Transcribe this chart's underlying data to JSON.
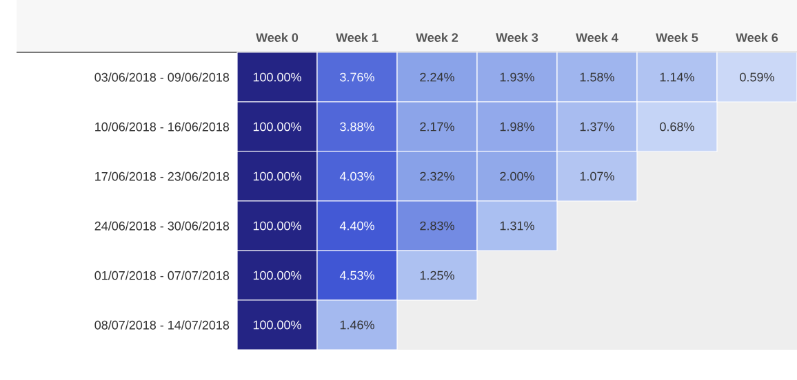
{
  "chart_data": {
    "type": "heatmap",
    "categories": [
      "Week 0",
      "Week 1",
      "Week 2",
      "Week 3",
      "Week 4",
      "Week 5",
      "Week 6"
    ],
    "y_categories": [
      "03/06/2018 - 09/06/2018",
      "10/06/2018 - 16/06/2018",
      "17/06/2018 - 23/06/2018",
      "24/06/2018 - 30/06/2018",
      "01/07/2018 - 07/07/2018",
      "08/07/2018 - 14/07/2018"
    ],
    "cells": [
      [
        100,
        3.76,
        2.24,
        1.93,
        1.58,
        1.14,
        0.59
      ],
      [
        100,
        3.88,
        2.17,
        1.98,
        1.37,
        0.68,
        null
      ],
      [
        100,
        4.03,
        2.32,
        2.0,
        1.07,
        null,
        null
      ],
      [
        100,
        4.4,
        2.83,
        1.31,
        null,
        null,
        null
      ],
      [
        100,
        4.53,
        1.25,
        null,
        null,
        null,
        null
      ],
      [
        100,
        1.46,
        null,
        null,
        null,
        null,
        null
      ]
    ],
    "cell_labels": [
      [
        "100.00%",
        "3.76%",
        "2.24%",
        "1.93%",
        "1.58%",
        "1.14%",
        "0.59%"
      ],
      [
        "100.00%",
        "3.88%",
        "2.17%",
        "1.98%",
        "1.37%",
        "0.68%",
        null
      ],
      [
        "100.00%",
        "4.03%",
        "2.32%",
        "2.00%",
        "1.07%",
        null,
        null
      ],
      [
        "100.00%",
        "4.40%",
        "2.83%",
        "1.31%",
        null,
        null,
        null
      ],
      [
        "100.00%",
        "4.53%",
        "1.25%",
        null,
        null,
        null,
        null
      ],
      [
        "100.00%",
        "1.46%",
        null,
        null,
        null,
        null,
        null
      ]
    ]
  }
}
